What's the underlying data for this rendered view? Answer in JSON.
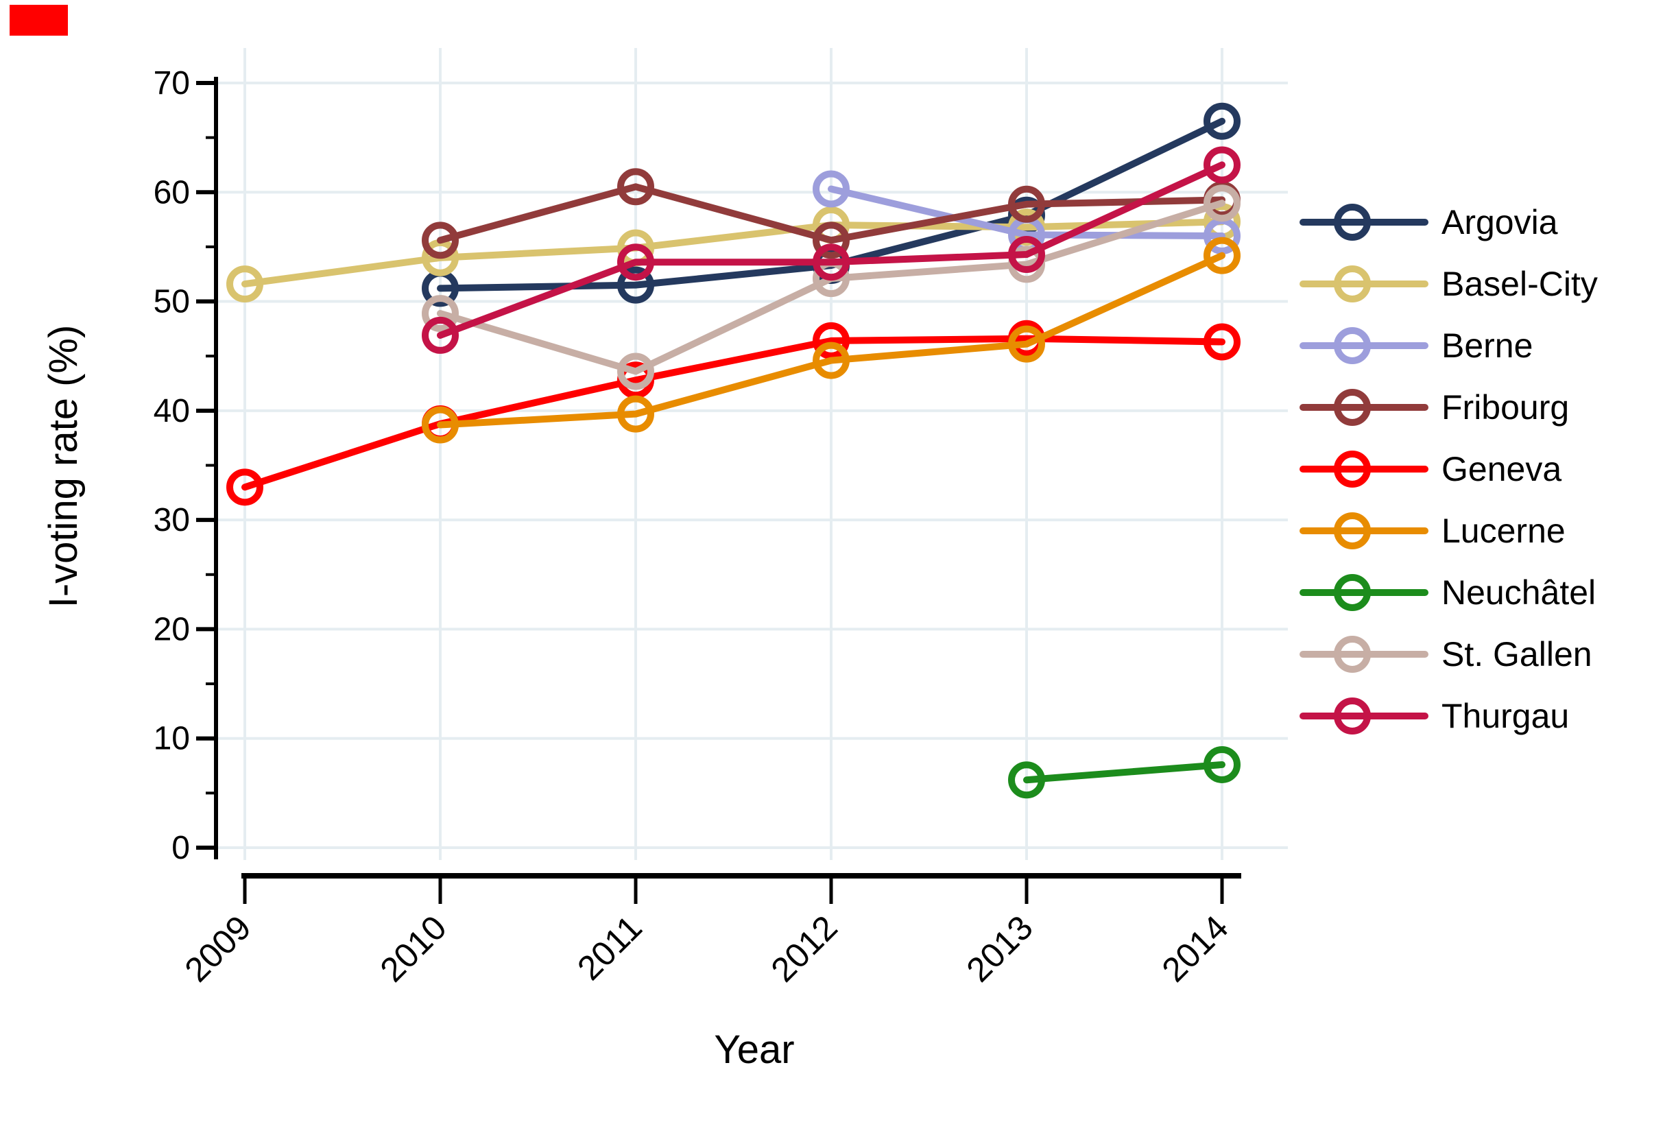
{
  "annotation": {
    "red_marker_color": "#FF0000"
  },
  "chart_data": {
    "type": "line",
    "title": "",
    "xlabel": "Year",
    "ylabel": "I-voting rate (%)",
    "x_ticks": [
      "2009",
      "2010",
      "2011",
      "2012",
      "2013",
      "2014"
    ],
    "y_ticks": [
      0,
      10,
      20,
      30,
      40,
      50,
      60,
      70
    ],
    "y_minor_ticks": [
      5,
      15,
      25,
      35,
      45,
      55,
      65
    ],
    "xlim": [
      2009,
      2014
    ],
    "ylim": [
      0,
      70
    ],
    "grid": true,
    "gridline_color": "#E5EDF1",
    "axis_color": "#000000",
    "legend_position": "right",
    "series": [
      {
        "name": "Argovia",
        "color": "#24395E",
        "x": [
          2010,
          2011,
          2012,
          2013,
          2014
        ],
        "values": [
          51.2,
          51.5,
          53.3,
          57.9,
          66.5
        ]
      },
      {
        "name": "Basel-City",
        "color": "#D9C36E",
        "x": [
          2009,
          2010,
          2011,
          2012,
          2013,
          2014
        ],
        "values": [
          51.6,
          54.0,
          54.9,
          57.0,
          56.8,
          57.3
        ]
      },
      {
        "name": "Berne",
        "color": "#9D9EDC",
        "x": [
          2012,
          2013,
          2014
        ],
        "values": [
          60.3,
          56.1,
          56.0
        ]
      },
      {
        "name": "Fribourg",
        "color": "#913B3B",
        "x": [
          2010,
          2011,
          2012,
          2013,
          2014
        ],
        "values": [
          55.6,
          60.5,
          55.6,
          58.9,
          59.3
        ]
      },
      {
        "name": "Geneva",
        "color": "#FF0000",
        "x": [
          2009,
          2010,
          2011,
          2012,
          2013,
          2014
        ],
        "values": [
          33.0,
          38.8,
          42.8,
          46.4,
          46.6,
          46.3
        ]
      },
      {
        "name": "Lucerne",
        "color": "#E88C00",
        "x": [
          2010,
          2011,
          2012,
          2013,
          2014
        ],
        "values": [
          38.7,
          39.7,
          44.6,
          46.1,
          54.2
        ]
      },
      {
        "name": "Neuchâtel",
        "color": "#1C8C1C",
        "x": [
          2013,
          2014
        ],
        "values": [
          6.2,
          7.6
        ]
      },
      {
        "name": "St. Gallen",
        "color": "#C7AEA5",
        "x": [
          2010,
          2011,
          2012,
          2013,
          2014
        ],
        "values": [
          48.9,
          43.6,
          52.1,
          53.4,
          59.0
        ]
      },
      {
        "name": "Thurgau",
        "color": "#C41347",
        "x": [
          2010,
          2011,
          2012,
          2013,
          2014
        ],
        "values": [
          46.9,
          53.6,
          53.6,
          54.3,
          62.5
        ]
      }
    ]
  }
}
